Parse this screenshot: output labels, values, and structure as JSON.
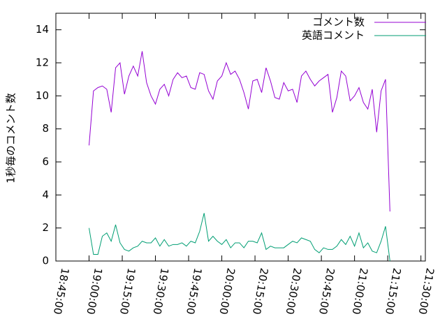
{
  "chart_data": {
    "type": "line",
    "ylabel": "1秒毎のコメント数",
    "x": [
      "19:00:00",
      "19:02:00",
      "19:04:00",
      "19:06:00",
      "19:08:00",
      "19:10:00",
      "19:12:00",
      "19:14:00",
      "19:16:00",
      "19:18:00",
      "19:20:00",
      "19:22:00",
      "19:24:00",
      "19:26:00",
      "19:28:00",
      "19:30:00",
      "19:32:00",
      "19:34:00",
      "19:36:00",
      "19:38:00",
      "19:40:00",
      "19:42:00",
      "19:44:00",
      "19:46:00",
      "19:48:00",
      "19:50:00",
      "19:52:00",
      "19:54:00",
      "19:56:00",
      "19:58:00",
      "20:00:00",
      "20:02:00",
      "20:04:00",
      "20:06:00",
      "20:08:00",
      "20:10:00",
      "20:12:00",
      "20:14:00",
      "20:16:00",
      "20:18:00",
      "20:20:00",
      "20:22:00",
      "20:24:00",
      "20:26:00",
      "20:28:00",
      "20:30:00",
      "20:32:00",
      "20:34:00",
      "20:36:00",
      "20:38:00",
      "20:40:00",
      "20:42:00",
      "20:44:00",
      "20:46:00",
      "20:48:00",
      "20:50:00",
      "20:52:00",
      "20:54:00",
      "20:56:00",
      "20:58:00",
      "21:00:00",
      "21:02:00",
      "21:04:00",
      "21:06:00",
      "21:08:00",
      "21:10:00",
      "21:12:00",
      "21:14:00",
      "21:16:00"
    ],
    "series": [
      {
        "name": "コメント数",
        "color": "#9400d3",
        "values": [
          7.0,
          10.3,
          10.5,
          10.6,
          10.4,
          9.0,
          11.7,
          12.0,
          10.1,
          11.2,
          11.8,
          11.2,
          12.7,
          10.8,
          10.0,
          9.5,
          10.4,
          10.7,
          10.0,
          11.0,
          11.4,
          11.1,
          11.2,
          10.5,
          10.4,
          11.4,
          11.3,
          10.3,
          9.8,
          10.9,
          11.2,
          12.0,
          11.3,
          11.5,
          11.0,
          10.2,
          9.2,
          10.9,
          11.0,
          10.2,
          11.7,
          10.9,
          9.9,
          9.8,
          10.8,
          10.3,
          10.4,
          9.6,
          11.2,
          11.5,
          11.0,
          10.6,
          10.9,
          11.1,
          11.3,
          9.0,
          9.9,
          11.5,
          11.2,
          9.7,
          10.0,
          10.5,
          9.6,
          9.2,
          10.4,
          7.8,
          10.3,
          11.0,
          3.0
        ]
      },
      {
        "name": "英語コメント",
        "color": "#009e73",
        "values": [
          2.0,
          0.4,
          0.4,
          1.5,
          1.7,
          1.2,
          2.2,
          1.1,
          0.7,
          0.6,
          0.8,
          0.9,
          1.2,
          1.1,
          1.1,
          1.4,
          0.9,
          1.3,
          0.9,
          1.0,
          1.0,
          1.1,
          0.9,
          1.2,
          1.1,
          1.8,
          2.9,
          1.2,
          1.5,
          1.2,
          1.0,
          1.3,
          0.8,
          1.1,
          1.1,
          0.8,
          1.2,
          1.2,
          1.1,
          1.7,
          0.7,
          0.9,
          0.8,
          0.8,
          0.8,
          1.0,
          1.2,
          1.1,
          1.4,
          1.3,
          1.2,
          0.7,
          0.5,
          0.8,
          0.7,
          0.7,
          0.9,
          1.3,
          1.0,
          1.5,
          0.9,
          1.7,
          0.8,
          1.1,
          0.6,
          0.5,
          1.2,
          2.1,
          0.0
        ]
      }
    ],
    "xlim": [
      "18:45:00",
      "21:32:00"
    ],
    "xticks": [
      "18:45:00",
      "19:00:00",
      "19:15:00",
      "19:30:00",
      "19:45:00",
      "20:00:00",
      "20:15:00",
      "20:30:00",
      "20:45:00",
      "21:00:00",
      "21:15:00",
      "21:30:00"
    ],
    "ylim": [
      0,
      15
    ],
    "yticks": [
      0,
      2,
      4,
      6,
      8,
      10,
      12,
      14
    ],
    "legend": "top-right"
  }
}
